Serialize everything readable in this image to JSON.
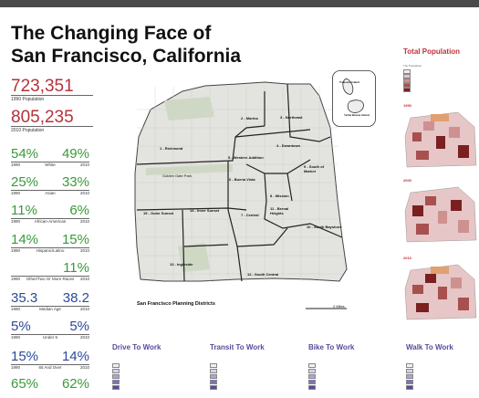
{
  "title_line1": "The Changing Face of",
  "title_line2": "San Francisco, California",
  "pop1990": {
    "value": "723,351",
    "label": "1990 Population"
  },
  "pop2010": {
    "value": "805,235",
    "label": "2010 Population"
  },
  "stats": [
    {
      "left": "54%",
      "right": "49%",
      "y1": "1990",
      "label": "White",
      "y2": "2010",
      "color": "green"
    },
    {
      "left": "25%",
      "right": "33%",
      "y1": "1990",
      "label": "Asian",
      "y2": "2010",
      "color": "green"
    },
    {
      "left": "11%",
      "right": "6%",
      "y1": "1990",
      "label": "African-American",
      "y2": "2010",
      "color": "green"
    },
    {
      "left": "14%",
      "right": "15%",
      "y1": "1990",
      "label": "Hispanic/Latino",
      "y2": "2010",
      "color": "green"
    },
    {
      "left": "",
      "right": "11%",
      "y1": "1990",
      "label": "Other/Two Or More Races",
      "y2": "2010",
      "color": "green"
    },
    {
      "left": "35.3",
      "right": "38.2",
      "y1": "1990",
      "label": "Median Age",
      "y2": "2010",
      "color": "blue"
    },
    {
      "left": "5%",
      "right": "5%",
      "y1": "1990",
      "label": "Under 5",
      "y2": "2010",
      "color": "blue"
    },
    {
      "left": "15%",
      "right": "14%",
      "y1": "1990",
      "label": "65 And Over",
      "y2": "2010",
      "color": "blue"
    },
    {
      "left": "65%",
      "right": "62%",
      "y1": "",
      "label": "",
      "y2": "",
      "color": "green"
    }
  ],
  "map": {
    "caption": "San Francisco Planning Districts",
    "districts": [
      "1 - Richmond",
      "2 - Marina",
      "3 - Northeast",
      "4 - Downtown",
      "5 - Western Addition",
      "6 - Buena Vista",
      "7 - Central",
      "8 - Mission",
      "9 - South of Market",
      "10 - South Bayshore",
      "11 - Bernal Heights",
      "12 - South Central",
      "13 - Ingleside",
      "14 - Inner Sunset",
      "15 - Outer Sunset"
    ],
    "park_label": "Golden Gate Park",
    "inset_labels": [
      "Treasure Island",
      "Yerba Buena Island"
    ],
    "scale_label": "2 Miles"
  },
  "right_panel": {
    "title": "Total Population",
    "years": [
      "1990",
      "2000",
      "2010"
    ]
  },
  "bottom_sections": [
    "Drive To Work",
    "Transit To Work",
    "Bike To Work",
    "Walk To Work"
  ],
  "colors": {
    "accent_red": "#b5323c",
    "green": "#3a9a3a",
    "blue": "#2b4a9a",
    "purple": "#5a4a9a"
  }
}
